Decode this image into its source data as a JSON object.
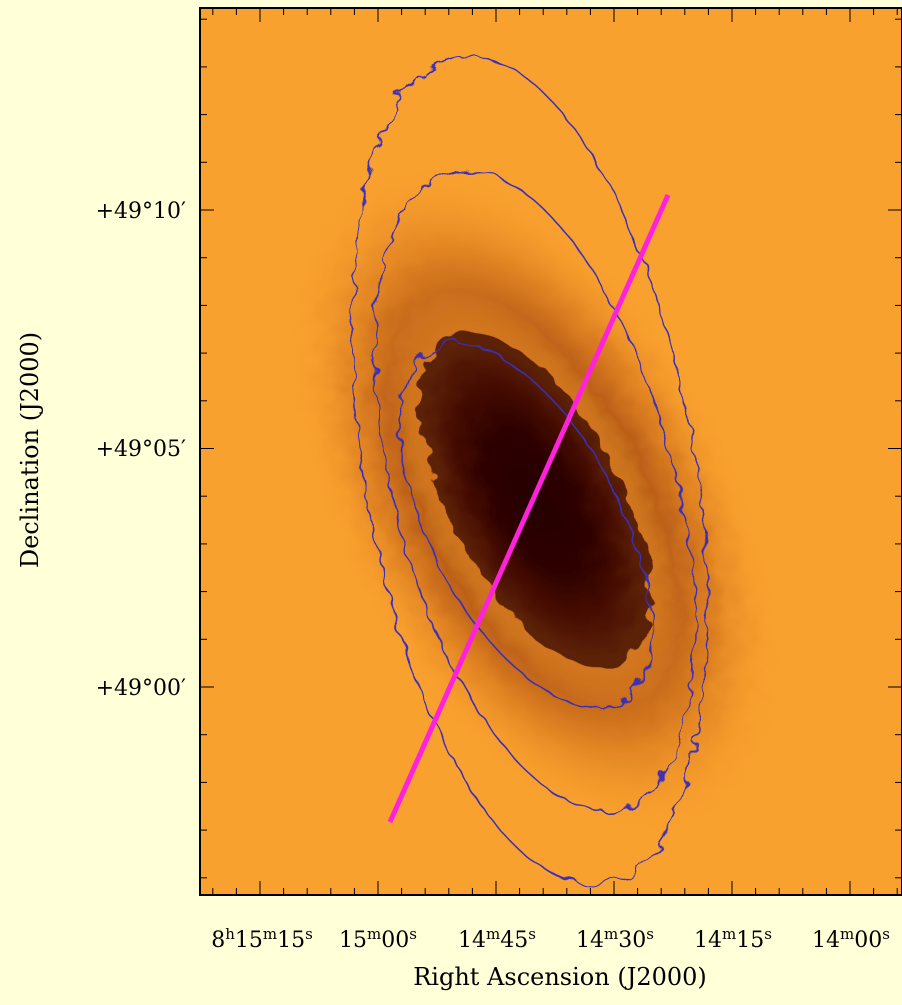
{
  "figure": {
    "x_label": "Right Ascension (J2000)",
    "y_label": "Declination (J2000)",
    "x_tick_labels": [
      "8h15m15s",
      "15m00s",
      "14m45s",
      "14m30s",
      "14m15s",
      "14m00s"
    ],
    "y_tick_labels": [
      "+49°10′",
      "+49°05′",
      "+49°00′"
    ]
  }
}
